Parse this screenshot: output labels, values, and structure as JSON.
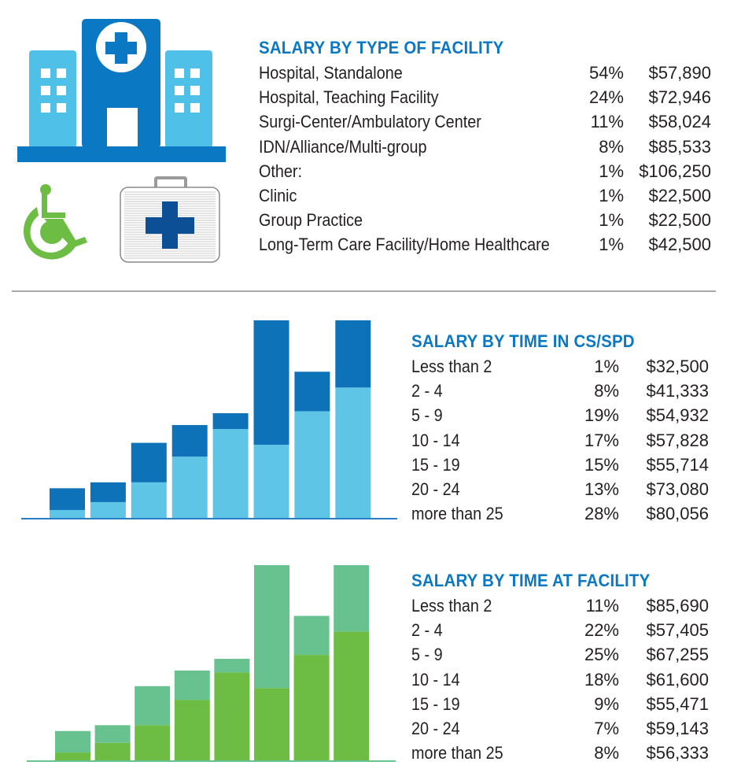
{
  "colors": {
    "title": "#0a78c2",
    "text": "#231f20",
    "divider": "#a9a9a9",
    "hospital_dark": "#0a78c2",
    "hospital_light": "#4fc0e8",
    "wheelchair": "#6dbd45",
    "kit_cross": "#0d4f94",
    "blue_top": "#0e72b8",
    "blue_bottom": "#5fc5e6",
    "green_top": "#68c28f",
    "green_bottom": "#6dbd45"
  },
  "icons": [
    "hospital-building-icon",
    "wheelchair-icon",
    "first-aid-kit-icon"
  ],
  "facility": {
    "title": "SALARY BY TYPE OF FACILITY",
    "rows": [
      {
        "label": "Hospital, Standalone",
        "pct": "54%",
        "salary": "$57,890"
      },
      {
        "label": "Hospital, Teaching Facility",
        "pct": "24%",
        "salary": "$72,946"
      },
      {
        "label": "Surgi-Center/Ambulatory Center",
        "pct": "11%",
        "salary": "$58,024"
      },
      {
        "label": "IDN/Alliance/Multi-group",
        "pct": "8%",
        "salary": "$85,533"
      },
      {
        "label": "Other:",
        "pct": "1%",
        "salary": "$106,250"
      },
      {
        "label": "Clinic",
        "pct": "1%",
        "salary": "$22,500"
      },
      {
        "label": "Group Practice",
        "pct": "1%",
        "salary": "$22,500"
      },
      {
        "label": "Long-Term Care Facility/Home Healthcare",
        "pct": "1%",
        "salary": "$42,500"
      }
    ]
  },
  "cs_spd": {
    "title": "SALARY BY TIME IN CS/SPD",
    "rows": [
      {
        "label": "Less than 2",
        "pct": "1%",
        "salary": "$32,500"
      },
      {
        "label": "2 - 4",
        "pct": "8%",
        "salary": "$41,333"
      },
      {
        "label": "5 - 9",
        "pct": "19%",
        "salary": "$54,932"
      },
      {
        "label": "10 - 14",
        "pct": "17%",
        "salary": "$57,828"
      },
      {
        "label": "15 - 19",
        "pct": "15%",
        "salary": "$55,714"
      },
      {
        "label": "20 - 24",
        "pct": "13%",
        "salary": "$73,080"
      },
      {
        "label": "more than 25",
        "pct": "28%",
        "salary": "$80,056"
      }
    ]
  },
  "at_facility": {
    "title": "SALARY BY TIME AT FACILITY",
    "rows": [
      {
        "label": "Less than 2",
        "pct": "11%",
        "salary": "$85,690"
      },
      {
        "label": "2 - 4",
        "pct": "22%",
        "salary": "$57,405"
      },
      {
        "label": "5 - 9",
        "pct": "25%",
        "salary": "$67,255"
      },
      {
        "label": "10 - 14",
        "pct": "18%",
        "salary": "$61,600"
      },
      {
        "label": "15 - 19",
        "pct": "9%",
        "salary": "$55,471"
      },
      {
        "label": "20 - 24",
        "pct": "7%",
        "salary": "$59,143"
      },
      {
        "label": "more than 25",
        "pct": "8%",
        "salary": "$56,333"
      }
    ]
  },
  "chart_data": [
    {
      "type": "bar",
      "stacked": true,
      "title": "",
      "xlabel": "",
      "ylabel": "",
      "grid": false,
      "legend": "none",
      "categories": [
        "1",
        "2",
        "3",
        "4",
        "5",
        "6",
        "7",
        "8"
      ],
      "ylim": [
        0,
        100
      ],
      "series": [
        {
          "name": "bottom",
          "color": "#5fc5e6",
          "values": [
            4,
            8,
            18,
            31,
            45,
            37,
            54,
            66
          ]
        },
        {
          "name": "top",
          "color": "#0e72b8",
          "values": [
            11,
            10,
            20,
            16,
            8,
            63,
            20,
            34
          ]
        }
      ]
    },
    {
      "type": "bar",
      "stacked": true,
      "title": "",
      "xlabel": "",
      "ylabel": "",
      "grid": false,
      "legend": "none",
      "categories": [
        "1",
        "2",
        "3",
        "4",
        "5",
        "6",
        "7",
        "8"
      ],
      "ylim": [
        0,
        100
      ],
      "series": [
        {
          "name": "bottom",
          "color": "#6dbd45",
          "values": [
            4,
            9,
            18,
            31,
            45,
            37,
            54,
            66
          ]
        },
        {
          "name": "top",
          "color": "#68c28f",
          "values": [
            11,
            9,
            20,
            15,
            7,
            63,
            20,
            34
          ]
        }
      ]
    }
  ]
}
